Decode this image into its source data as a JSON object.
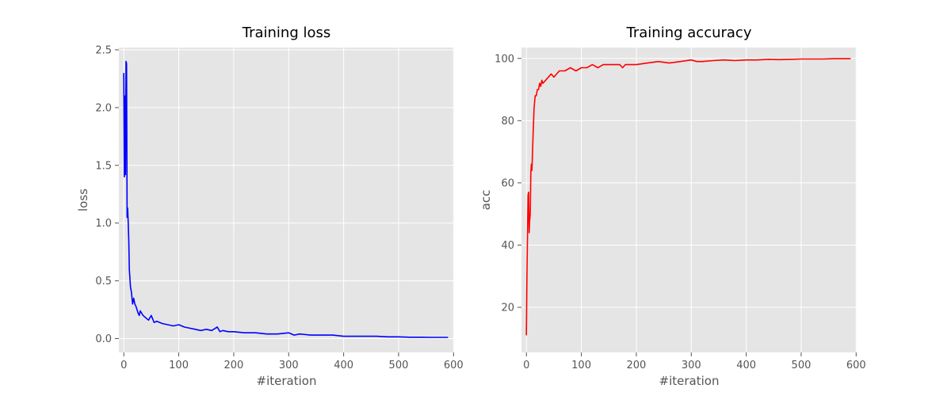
{
  "chart_data": [
    {
      "type": "line",
      "title": "Training loss",
      "xlabel": "#iteration",
      "ylabel": "loss",
      "xlim": [
        -9,
        601
      ],
      "ylim": [
        -0.12,
        2.52
      ],
      "xticks": [
        0,
        100,
        200,
        300,
        400,
        500,
        600
      ],
      "yticks": [
        0.0,
        0.5,
        1.0,
        1.5,
        2.0,
        2.5
      ],
      "ytick_labels": [
        "0.0",
        "0.5",
        "1.0",
        "1.5",
        "2.0",
        "2.5"
      ],
      "grid": true,
      "color": "#0000ff",
      "series": [
        {
          "x": [
            0,
            1,
            2,
            3,
            4,
            5,
            6,
            7,
            8,
            9,
            10,
            12,
            14,
            16,
            18,
            20,
            22,
            24,
            26,
            28,
            30,
            35,
            40,
            45,
            50,
            55,
            60,
            70,
            80,
            90,
            100,
            110,
            120,
            130,
            140,
            150,
            160,
            170,
            175,
            180,
            190,
            200,
            220,
            240,
            260,
            280,
            300,
            310,
            320,
            340,
            360,
            380,
            400,
            420,
            440,
            460,
            480,
            500,
            520,
            540,
            560,
            580,
            590
          ],
          "y": [
            2.3,
            1.4,
            2.1,
            1.42,
            2.4,
            2.38,
            1.05,
            1.13,
            1.0,
            0.85,
            0.6,
            0.45,
            0.4,
            0.3,
            0.35,
            0.3,
            0.28,
            0.25,
            0.22,
            0.2,
            0.24,
            0.2,
            0.18,
            0.16,
            0.2,
            0.14,
            0.15,
            0.13,
            0.12,
            0.11,
            0.12,
            0.1,
            0.09,
            0.08,
            0.07,
            0.08,
            0.07,
            0.1,
            0.06,
            0.07,
            0.06,
            0.06,
            0.05,
            0.05,
            0.04,
            0.04,
            0.05,
            0.03,
            0.04,
            0.03,
            0.03,
            0.03,
            0.02,
            0.02,
            0.02,
            0.02,
            0.015,
            0.015,
            0.012,
            0.012,
            0.01,
            0.01,
            0.01
          ]
        }
      ]
    },
    {
      "type": "line",
      "title": "Training accuracy",
      "xlabel": "#iteration",
      "ylabel": "acc",
      "xlim": [
        -9,
        601
      ],
      "ylim": [
        5.5,
        103.5
      ],
      "xticks": [
        0,
        100,
        200,
        300,
        400,
        500,
        600
      ],
      "yticks": [
        20,
        40,
        60,
        80,
        100
      ],
      "ytick_labels": [
        "20",
        "40",
        "60",
        "80",
        "100"
      ],
      "grid": true,
      "color": "#ff0000",
      "series": [
        {
          "x": [
            0,
            1,
            2,
            3,
            4,
            5,
            6,
            7,
            8,
            9,
            10,
            12,
            14,
            16,
            18,
            20,
            22,
            24,
            26,
            28,
            30,
            35,
            40,
            45,
            50,
            55,
            60,
            70,
            80,
            90,
            100,
            110,
            120,
            130,
            140,
            150,
            160,
            170,
            175,
            180,
            190,
            200,
            220,
            240,
            260,
            280,
            300,
            310,
            320,
            340,
            360,
            380,
            400,
            420,
            440,
            460,
            480,
            500,
            520,
            540,
            560,
            580,
            590
          ],
          "y": [
            11,
            30,
            43,
            56,
            57,
            44,
            48,
            50,
            63,
            66,
            64,
            75,
            84,
            88,
            88,
            90,
            90,
            92,
            91,
            93,
            92,
            93,
            94,
            95,
            94,
            95,
            96,
            96,
            97,
            96,
            97,
            97,
            98,
            97,
            98,
            98,
            98,
            98,
            97,
            98,
            98,
            98,
            98.5,
            99,
            98.5,
            99,
            99.5,
            99,
            99,
            99.3,
            99.5,
            99.3,
            99.5,
            99.5,
            99.7,
            99.6,
            99.7,
            99.8,
            99.8,
            99.8,
            99.9,
            99.9,
            99.9
          ]
        }
      ]
    }
  ]
}
